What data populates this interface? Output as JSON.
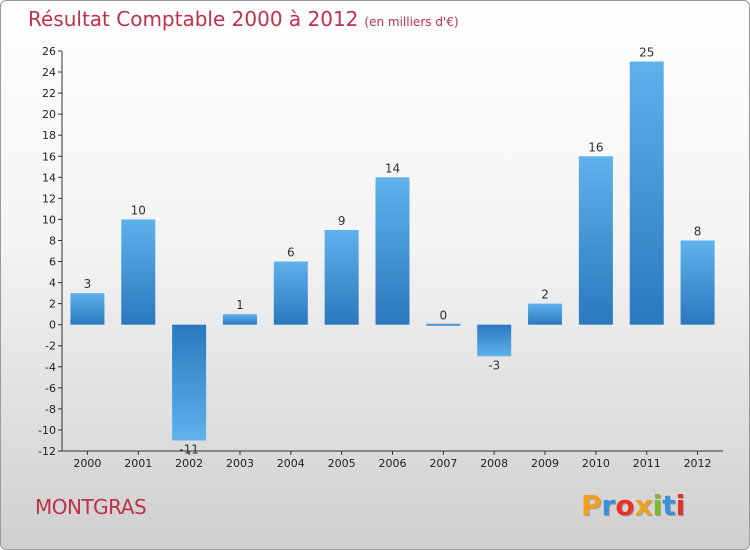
{
  "header": {
    "title": "Résultat Comptable 2000 à 2012",
    "subtitle": "(en milliers d'€)"
  },
  "footer": {
    "commune": "MONTGRAS",
    "logo_letters": [
      "P",
      "r",
      "o",
      "x",
      "i",
      "t",
      "i"
    ],
    "logo_colors": [
      "#f0a020",
      "#3a8fd9",
      "#e8302a",
      "#f0a020",
      "#7dbb2b",
      "#3a8fd9",
      "#e8302a"
    ]
  },
  "colors": {
    "bar_light": "#5fb2ec",
    "bar_dark": "#2a78be",
    "title": "#c0304a"
  },
  "chart_data": {
    "type": "bar",
    "title": "Résultat Comptable 2000 à 2012",
    "subtitle": "(en milliers d'€)",
    "categories": [
      "2000",
      "2001",
      "2002",
      "2003",
      "2004",
      "2005",
      "2006",
      "2007",
      "2008",
      "2009",
      "2010",
      "2011",
      "2012"
    ],
    "values": [
      3,
      10,
      -11,
      1,
      6,
      9,
      14,
      0,
      -3,
      2,
      16,
      25,
      8
    ],
    "value_labels": [
      "3",
      "10",
      "-11",
      "1",
      "6",
      "9",
      "14",
      "0",
      "-3",
      "2",
      "16",
      "25",
      "8"
    ],
    "ylim": [
      -12,
      26
    ],
    "yticks": [
      -12,
      -10,
      -8,
      -6,
      -4,
      -2,
      0,
      2,
      4,
      6,
      8,
      10,
      12,
      14,
      16,
      18,
      20,
      22,
      24,
      26
    ],
    "ytick_labels": [
      "-12",
      "-10",
      "-8",
      "-6",
      "-4",
      "-2",
      "0",
      "2",
      "4",
      "6",
      "8",
      "10",
      "12",
      "14",
      "16",
      "18",
      "20",
      "22",
      "24",
      "26"
    ],
    "xlabel": "",
    "ylabel": "",
    "grid": false,
    "legend": "none"
  }
}
